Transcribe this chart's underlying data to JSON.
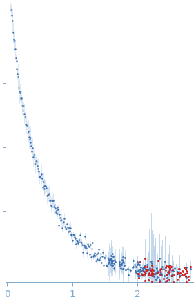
{
  "title": "",
  "xlabel": "",
  "ylabel": "",
  "xlim": [
    -0.02,
    2.85
  ],
  "ylim": [
    -0.02,
    0.85
  ],
  "x_ticks": [
    0,
    1,
    2
  ],
  "bg_color": "#ffffff",
  "blue_dot_color": "#3a6faf",
  "red_dot_color": "#cc2222",
  "error_bar_color": "#b8d0e8",
  "axis_color": "#7ea8cc",
  "tick_color": "#7ea8cc",
  "seed": 42
}
